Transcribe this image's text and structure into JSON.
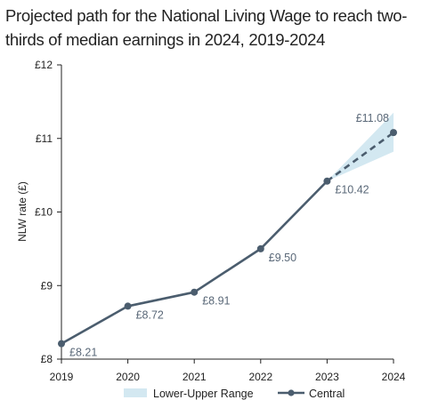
{
  "chart_data": {
    "type": "line",
    "title": "Projected path for the National Living Wage to reach two-thirds of median earnings in 2024, 2019-2024",
    "ylabel": "NLW rate (£)",
    "xlabel": "",
    "x": [
      2019,
      2020,
      2021,
      2022,
      2023,
      2024
    ],
    "ylim": [
      8,
      12
    ],
    "yticks": [
      8,
      9,
      10,
      11,
      12
    ],
    "ytick_labels": [
      "£8",
      "£9",
      "£10",
      "£11",
      "£12"
    ],
    "xtick_labels": [
      "2019",
      "2020",
      "2021",
      "2022",
      "2023",
      "2024"
    ],
    "grid": false,
    "legend_position": "bottom",
    "series": [
      {
        "name": "Central",
        "values": [
          8.21,
          8.72,
          8.91,
          9.5,
          10.42,
          11.08
        ],
        "labels": [
          "£8.21",
          "£8.72",
          "£8.91",
          "£9.50",
          "£10.42",
          "£11.08"
        ],
        "projected_from_index": 4,
        "color": "#4b5d6e"
      },
      {
        "name": "Lower-Upper Range",
        "x": [
          2023,
          2024
        ],
        "lower": [
          10.42,
          10.82
        ],
        "upper": [
          10.42,
          11.35
        ],
        "color": "#d3e8f1"
      }
    ]
  }
}
